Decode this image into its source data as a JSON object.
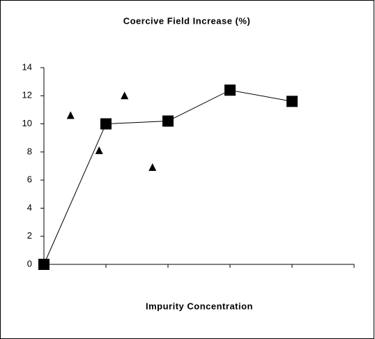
{
  "chart_data": {
    "type": "scatter",
    "title": "Coercive Field Increase (%)",
    "x_label": "Impurity Concentration",
    "xlim": [
      0,
      5
    ],
    "xticks": [
      0,
      1,
      2,
      3,
      4,
      5
    ],
    "ylim": [
      0,
      14
    ],
    "yticks": [
      0,
      2,
      4,
      6,
      8,
      10,
      12,
      14
    ],
    "grid": false,
    "series": [
      {
        "color": "#000000",
        "marker": "square",
        "line": true,
        "x": [
          0,
          1,
          2,
          3,
          4
        ],
        "values": [
          0,
          10.0,
          10.2,
          12.4,
          11.6
        ]
      },
      {
        "color": "#000000",
        "marker": "triangle",
        "line": false,
        "x": [
          0.43,
          0.89,
          1.3,
          1.75
        ],
        "values": [
          10.6,
          8.1,
          12.0,
          6.9
        ]
      }
    ]
  }
}
